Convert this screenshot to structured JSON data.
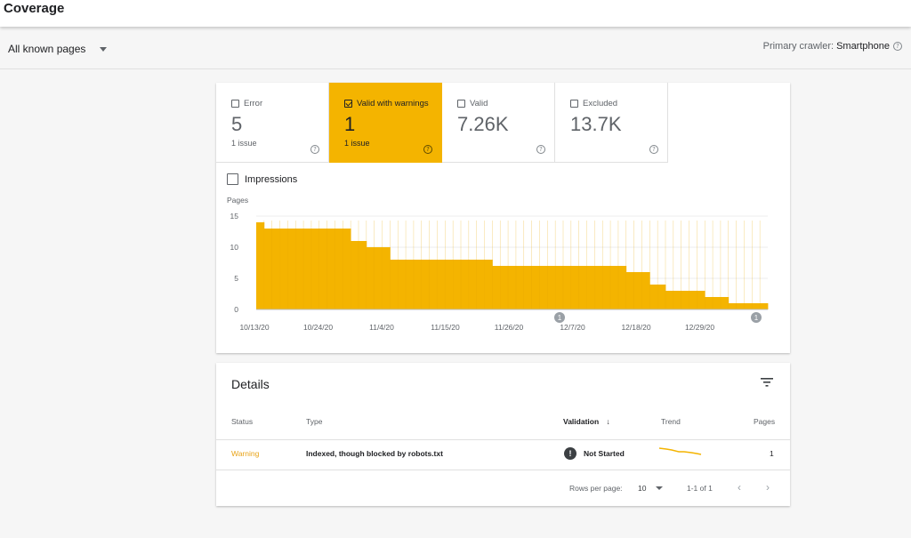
{
  "header": {
    "title": "Coverage"
  },
  "toolbar": {
    "filter_label": "All known pages",
    "crawler_label": "Primary crawler:",
    "crawler_value": "Smartphone"
  },
  "tiles": [
    {
      "label": "Error",
      "value": "5",
      "sub": "1 issue",
      "checked": false,
      "active": false
    },
    {
      "label": "Valid with warnings",
      "value": "1",
      "sub": "1 issue",
      "checked": true,
      "active": true
    },
    {
      "label": "Valid",
      "value": "7.26K",
      "sub": "",
      "checked": false,
      "active": false
    },
    {
      "label": "Excluded",
      "value": "13.7K",
      "sub": "",
      "checked": false,
      "active": false
    }
  ],
  "impressions_label": "Impressions",
  "colors": {
    "accent": "#f4b400",
    "warning_text": "#e8a317"
  },
  "chart_data": {
    "type": "bar",
    "ylabel": "Pages",
    "ylim": [
      0,
      15
    ],
    "yticks": [
      0,
      5,
      10,
      15
    ],
    "xtick_labels": [
      "10/13/20",
      "10/24/20",
      "11/4/20",
      "11/15/20",
      "11/26/20",
      "12/7/20",
      "12/18/20",
      "12/29/20"
    ],
    "values": [
      14,
      13,
      13,
      13,
      13,
      13,
      13,
      13,
      13,
      13,
      13,
      13,
      11,
      11,
      10,
      10,
      10,
      8,
      8,
      8,
      8,
      8,
      8,
      8,
      8,
      8,
      8,
      8,
      8,
      8,
      7,
      7,
      7,
      7,
      7,
      7,
      7,
      7,
      7,
      7,
      7,
      7,
      7,
      7,
      7,
      7,
      7,
      6,
      6,
      6,
      4,
      4,
      3,
      3,
      3,
      3,
      3,
      2,
      2,
      2,
      1,
      1,
      1,
      1,
      1
    ],
    "annotations": [
      "1",
      "1"
    ],
    "color": "#f4b400",
    "grid": true
  },
  "details": {
    "title": "Details",
    "columns": [
      "Status",
      "Type",
      "Validation",
      "Trend",
      "Pages"
    ],
    "rows": [
      {
        "status": "Warning",
        "type": "Indexed, though blocked by robots.txt",
        "validation": "Not Started",
        "pages": "1"
      }
    ],
    "rows_per_page_label": "Rows per page:",
    "rows_per_page_value": "10",
    "range_label": "1-1 of 1"
  }
}
